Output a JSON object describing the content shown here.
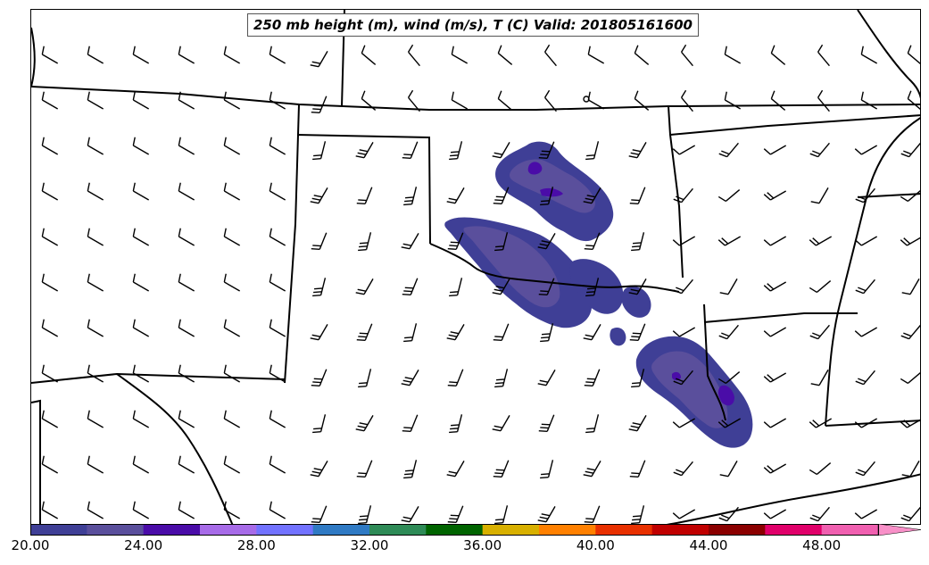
{
  "title": "250 mb height (m), wind (m/s), T (C) Valid: 201805161600",
  "colorbar": {
    "colors": [
      "#3f3f96",
      "#5a4f9c",
      "#4a0ca8",
      "#a76be8",
      "#7272ff",
      "#2f7ac4",
      "#2e8b57",
      "#006400",
      "#d8b000",
      "#ff8000",
      "#e83000",
      "#c00000",
      "#8b0000",
      "#e0006a",
      "#f060b0"
    ],
    "extend_color": "#f890c8",
    "ticks": [
      "20.00",
      "24.00",
      "28.00",
      "32.00",
      "36.00",
      "40.00",
      "44.00",
      "48.00"
    ]
  },
  "field_colors": {
    "base": "#3f3f96",
    "mid": "#5a4f9c",
    "peak": "#4a0ca8"
  }
}
